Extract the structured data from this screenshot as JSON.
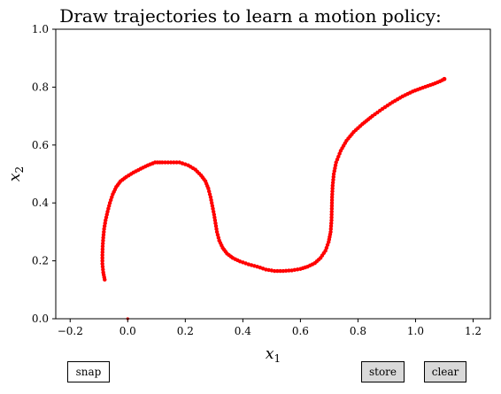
{
  "title": "Draw trajectories to learn a motion policy:",
  "buttons": {
    "snap": "snap",
    "store": "store",
    "clear": "clear"
  },
  "chart_data": {
    "type": "scatter",
    "title": "Draw trajectories to learn a motion policy:",
    "xlabel": "x",
    "xlabel_sub": "1",
    "ylabel": "x",
    "ylabel_sub": "2",
    "xlim": [
      -0.25,
      1.26
    ],
    "ylim": [
      0.0,
      1.0
    ],
    "xticks": [
      -0.2,
      0.0,
      0.2,
      0.4,
      0.6,
      0.8,
      1.0,
      1.2
    ],
    "xtick_labels": [
      "−0.2",
      "0.0",
      "0.2",
      "0.4",
      "0.6",
      "0.8",
      "1.0",
      "1.2"
    ],
    "yticks": [
      0.0,
      0.2,
      0.4,
      0.6,
      0.8,
      1.0
    ],
    "ytick_labels": [
      "0.0",
      "0.2",
      "0.4",
      "0.6",
      "0.8",
      "1.0"
    ],
    "grid": false,
    "marker_color": "#ff0000",
    "origin_marker": [
      0.0,
      0.0
    ],
    "trajectory": [
      [
        -0.08,
        0.135
      ],
      [
        -0.085,
        0.16
      ],
      [
        -0.088,
        0.19
      ],
      [
        -0.088,
        0.22
      ],
      [
        -0.087,
        0.25
      ],
      [
        -0.085,
        0.28
      ],
      [
        -0.082,
        0.31
      ],
      [
        -0.077,
        0.34
      ],
      [
        -0.07,
        0.37
      ],
      [
        -0.062,
        0.4
      ],
      [
        -0.052,
        0.43
      ],
      [
        -0.04,
        0.455
      ],
      [
        -0.025,
        0.475
      ],
      [
        -0.005,
        0.49
      ],
      [
        0.02,
        0.505
      ],
      [
        0.045,
        0.518
      ],
      [
        0.07,
        0.53
      ],
      [
        0.095,
        0.54
      ],
      [
        0.12,
        0.54
      ],
      [
        0.15,
        0.54
      ],
      [
        0.18,
        0.54
      ],
      [
        0.21,
        0.53
      ],
      [
        0.235,
        0.515
      ],
      [
        0.255,
        0.495
      ],
      [
        0.27,
        0.475
      ],
      [
        0.28,
        0.45
      ],
      [
        0.288,
        0.42
      ],
      [
        0.294,
        0.39
      ],
      [
        0.3,
        0.36
      ],
      [
        0.305,
        0.33
      ],
      [
        0.31,
        0.3
      ],
      [
        0.318,
        0.27
      ],
      [
        0.33,
        0.245
      ],
      [
        0.345,
        0.225
      ],
      [
        0.365,
        0.21
      ],
      [
        0.39,
        0.198
      ],
      [
        0.42,
        0.188
      ],
      [
        0.45,
        0.18
      ],
      [
        0.48,
        0.17
      ],
      [
        0.51,
        0.165
      ],
      [
        0.54,
        0.165
      ],
      [
        0.57,
        0.167
      ],
      [
        0.6,
        0.172
      ],
      [
        0.625,
        0.18
      ],
      [
        0.65,
        0.192
      ],
      [
        0.67,
        0.21
      ],
      [
        0.687,
        0.235
      ],
      [
        0.698,
        0.265
      ],
      [
        0.705,
        0.3
      ],
      [
        0.708,
        0.34
      ],
      [
        0.709,
        0.38
      ],
      [
        0.71,
        0.42
      ],
      [
        0.712,
        0.46
      ],
      [
        0.716,
        0.5
      ],
      [
        0.724,
        0.54
      ],
      [
        0.74,
        0.58
      ],
      [
        0.76,
        0.615
      ],
      [
        0.785,
        0.645
      ],
      [
        0.815,
        0.672
      ],
      [
        0.85,
        0.7
      ],
      [
        0.885,
        0.725
      ],
      [
        0.92,
        0.748
      ],
      [
        0.955,
        0.768
      ],
      [
        0.99,
        0.785
      ],
      [
        1.025,
        0.798
      ],
      [
        1.06,
        0.81
      ],
      [
        1.085,
        0.82
      ],
      [
        1.1,
        0.828
      ]
    ]
  }
}
